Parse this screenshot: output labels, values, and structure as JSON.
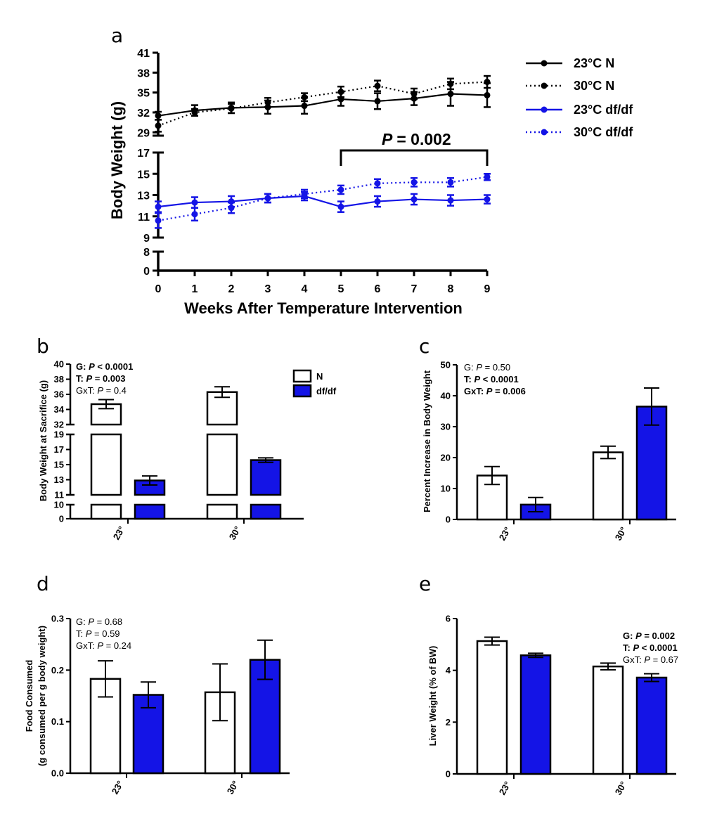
{
  "colors": {
    "normal": "#000000",
    "dwarf": "#1414e6",
    "bar_fill_n": "#ffffff",
    "bar_fill_df": "#1414e6"
  },
  "chart_data": [
    {
      "panel": "a",
      "type": "line",
      "xlabel": "Weeks After Temperature Intervention",
      "ylabel": "Body Weight (g)",
      "x": [
        0,
        1,
        2,
        3,
        4,
        5,
        6,
        7,
        8,
        9
      ],
      "y_axis_segments": [
        {
          "ylim": [
            28.5,
            41
          ],
          "ticks": [
            29,
            32,
            35,
            38,
            41
          ]
        },
        {
          "ylim": [
            9,
            17
          ],
          "ticks": [
            9,
            11,
            13,
            15,
            17
          ]
        },
        {
          "ylim": [
            0,
            8
          ],
          "ticks": [
            0,
            8
          ]
        }
      ],
      "series": [
        {
          "name": "23°C N",
          "style": "solid",
          "color": "normal",
          "values": [
            31.5,
            32.3,
            32.7,
            32.8,
            33.0,
            34.0,
            33.7,
            34.1,
            34.8,
            34.6
          ],
          "err": [
            0.6,
            0.8,
            0.8,
            1.0,
            1.2,
            1.0,
            1.2,
            1.0,
            1.8,
            1.8
          ]
        },
        {
          "name": "30°C N",
          "style": "dotted",
          "color": "normal",
          "values": [
            30.0,
            32.0,
            32.6,
            33.5,
            34.3,
            35.1,
            36.0,
            34.8,
            36.3,
            36.6
          ],
          "err": [
            0.9,
            0.5,
            0.7,
            0.7,
            0.6,
            0.8,
            0.8,
            0.8,
            0.8,
            0.9
          ]
        },
        {
          "name": "23°C df/df",
          "style": "solid",
          "color": "dwarf",
          "values": [
            11.9,
            12.3,
            12.4,
            12.7,
            12.9,
            11.9,
            12.4,
            12.6,
            12.5,
            12.6
          ],
          "err": [
            0.5,
            0.5,
            0.5,
            0.4,
            0.4,
            0.5,
            0.5,
            0.5,
            0.5,
            0.4
          ]
        },
        {
          "name": "30°C df/df",
          "style": "dotted",
          "color": "dwarf",
          "values": [
            10.6,
            11.2,
            11.8,
            12.7,
            13.1,
            13.5,
            14.1,
            14.2,
            14.2,
            14.7
          ],
          "err": [
            0.7,
            0.6,
            0.5,
            0.4,
            0.4,
            0.4,
            0.4,
            0.4,
            0.4,
            0.3
          ]
        }
      ],
      "annotation": {
        "text_label": "P",
        "text_value": "= 0.002",
        "from_x": 5,
        "to_x": 9
      }
    },
    {
      "panel": "b",
      "type": "bar",
      "ylabel": "Body Weight at Sacrifice (g)",
      "categories": [
        "23°",
        "30°"
      ],
      "y_axis_segments": [
        {
          "ylim": [
            32,
            40
          ],
          "ticks": [
            32,
            34,
            36,
            38,
            40
          ]
        },
        {
          "ylim": [
            11,
            19
          ],
          "ticks": [
            11,
            13,
            15,
            17,
            19
          ]
        },
        {
          "ylim": [
            0,
            10
          ],
          "ticks": [
            0,
            10
          ]
        }
      ],
      "series": [
        {
          "name": "N",
          "values": [
            34.7,
            36.3
          ],
          "err": [
            0.6,
            0.7
          ]
        },
        {
          "name": "df/df",
          "values": [
            12.9,
            15.6
          ],
          "err": [
            0.6,
            0.3
          ]
        }
      ],
      "stats": [
        {
          "label": "G: ",
          "p": "P",
          "value": " < 0.0001",
          "bold": true
        },
        {
          "label": "T: ",
          "p": "P",
          "value": " = 0.003",
          "bold": true
        },
        {
          "label": "GxT: ",
          "p": "P",
          "value": " = 0.4",
          "bold": false
        }
      ]
    },
    {
      "panel": "c",
      "type": "bar",
      "ylabel": "Percent Increase in Body Weight",
      "categories": [
        "23°",
        "30°"
      ],
      "ylim": [
        0,
        50
      ],
      "ticks": [
        0,
        10,
        20,
        30,
        40,
        50
      ],
      "series": [
        {
          "name": "N",
          "values": [
            14.2,
            21.7
          ],
          "err": [
            2.9,
            2.0
          ]
        },
        {
          "name": "df/df",
          "values": [
            4.8,
            36.5
          ],
          "err": [
            2.3,
            6.0
          ]
        }
      ],
      "stats": [
        {
          "label": "G: ",
          "p": "P",
          "value": " = 0.50",
          "bold": false
        },
        {
          "label": "T: ",
          "p": "P",
          "value": " < 0.0001",
          "bold": true
        },
        {
          "label": "GxT: ",
          "p": "P",
          "value": " = 0.006",
          "bold": true
        }
      ]
    },
    {
      "panel": "d",
      "type": "bar",
      "ylabel_line1": "Food Consumed",
      "ylabel_line2": "(g consumed per g body weight)",
      "categories": [
        "23°",
        "30°"
      ],
      "ylim": [
        0,
        0.3
      ],
      "ticks": [
        "0.0",
        "0.1",
        "0.2",
        "0.3"
      ],
      "tick_values": [
        0,
        0.1,
        0.2,
        0.3
      ],
      "series": [
        {
          "name": "N",
          "values": [
            0.183,
            0.157
          ],
          "err": [
            0.035,
            0.055
          ]
        },
        {
          "name": "df/df",
          "values": [
            0.152,
            0.22
          ],
          "err": [
            0.025,
            0.038
          ]
        }
      ],
      "stats": [
        {
          "label": "G: ",
          "p": "P",
          "value": " = 0.68",
          "bold": false
        },
        {
          "label": "T: ",
          "p": "P",
          "value": " = 0.59",
          "bold": false
        },
        {
          "label": "GxT: ",
          "p": "P",
          "value": " = 0.24",
          "bold": false
        }
      ]
    },
    {
      "panel": "e",
      "type": "bar",
      "ylabel": "Liver Weight (% of BW)",
      "categories": [
        "23°",
        "30°"
      ],
      "ylim": [
        0,
        6
      ],
      "ticks": [
        0,
        2,
        4,
        6
      ],
      "series": [
        {
          "name": "N",
          "values": [
            5.13,
            4.15
          ],
          "err": [
            0.15,
            0.13
          ]
        },
        {
          "name": "df/df",
          "values": [
            4.58,
            3.72
          ],
          "err": [
            0.08,
            0.15
          ]
        }
      ],
      "stats": [
        {
          "label": "G: ",
          "p": "P",
          "value": " = 0.002",
          "bold": true
        },
        {
          "label": "T: ",
          "p": "P",
          "value": " < 0.0001",
          "bold": true
        },
        {
          "label": "GxT: ",
          "p": "P",
          "value": " = 0.67",
          "bold": false
        }
      ]
    }
  ]
}
